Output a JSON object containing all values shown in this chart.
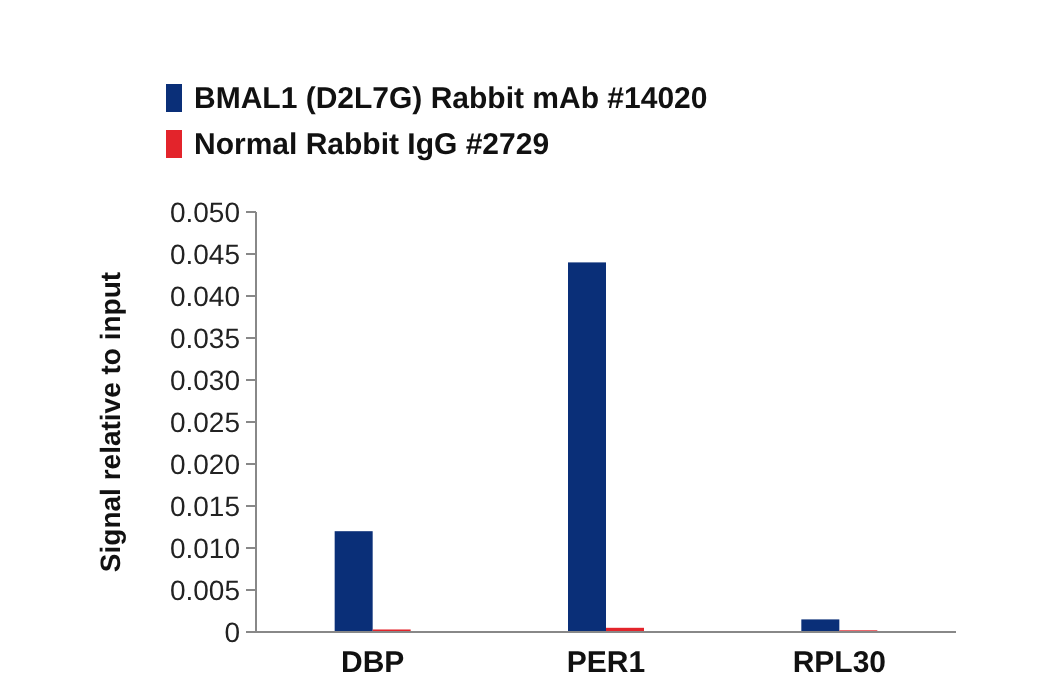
{
  "chart_data": {
    "type": "bar",
    "ylabel": "Signal relative to input",
    "categories": [
      "DBP",
      "PER1",
      "RPL30"
    ],
    "series": [
      {
        "name": "BMAL1 (D2L7G) Rabbit mAb #14020",
        "color": "#0a2f78",
        "values": [
          0.012,
          0.044,
          0.0015
        ]
      },
      {
        "name": "Normal Rabbit IgG #2729",
        "color": "#e3242b",
        "values": [
          0.0003,
          0.0005,
          0.0002
        ]
      }
    ],
    "ylim": [
      0,
      0.05
    ],
    "yticks": [
      {
        "value": 0,
        "label": "0"
      },
      {
        "value": 0.005,
        "label": "0.005"
      },
      {
        "value": 0.01,
        "label": "0.010"
      },
      {
        "value": 0.015,
        "label": "0.015"
      },
      {
        "value": 0.02,
        "label": "0.020"
      },
      {
        "value": 0.025,
        "label": "0.025"
      },
      {
        "value": 0.03,
        "label": "0.030"
      },
      {
        "value": 0.035,
        "label": "0.035"
      },
      {
        "value": 0.04,
        "label": "0.040"
      },
      {
        "value": 0.045,
        "label": "0.045"
      },
      {
        "value": 0.05,
        "label": "0.050"
      }
    ],
    "grid": false,
    "legend": "top left"
  }
}
